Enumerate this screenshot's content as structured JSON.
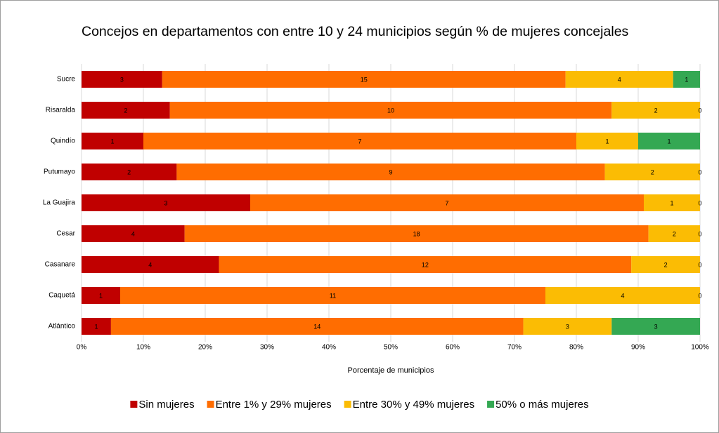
{
  "chart_data": {
    "type": "stacked_bar_percent",
    "title": "Concejos en departamentos con entre 10 y 24 municipios según % de mujeres concejales",
    "xlabel": "Porcentaje de municipios",
    "categories": [
      "Sucre",
      "Risaralda",
      "Quindío",
      "Putumayo",
      "La Guajira",
      "Cesar",
      "Casanare",
      "Caquetá",
      "Atlántico"
    ],
    "series": [
      {
        "name": "Sin mujeres",
        "color": "#c00000",
        "values": [
          3,
          2,
          1,
          2,
          3,
          4,
          4,
          1,
          1
        ]
      },
      {
        "name": "Entre 1% y 29% mujeres",
        "color": "#ff6d01",
        "values": [
          15,
          10,
          7,
          9,
          7,
          18,
          12,
          11,
          14
        ]
      },
      {
        "name": "Entre 30% y 49% mujeres",
        "color": "#fbbc04",
        "values": [
          4,
          2,
          1,
          2,
          1,
          2,
          2,
          4,
          3
        ]
      },
      {
        "name": "50% o más mujeres",
        "color": "#34a853",
        "values": [
          1,
          0,
          1,
          0,
          0,
          0,
          0,
          0,
          3
        ]
      }
    ],
    "xlim": [
      0,
      100
    ],
    "xticks": [
      {
        "value": 0,
        "label": "0%"
      },
      {
        "value": 10,
        "label": "10%"
      },
      {
        "value": 20,
        "label": "20%"
      },
      {
        "value": 30,
        "label": "30%"
      },
      {
        "value": 40,
        "label": "40%"
      },
      {
        "value": 50,
        "label": "50%"
      },
      {
        "value": 60,
        "label": "60%"
      },
      {
        "value": 70,
        "label": "70%"
      },
      {
        "value": 80,
        "label": "80%"
      },
      {
        "value": 90,
        "label": "90%"
      },
      {
        "value": 100,
        "label": "100%"
      }
    ],
    "grid": true,
    "legend": "bottom"
  }
}
